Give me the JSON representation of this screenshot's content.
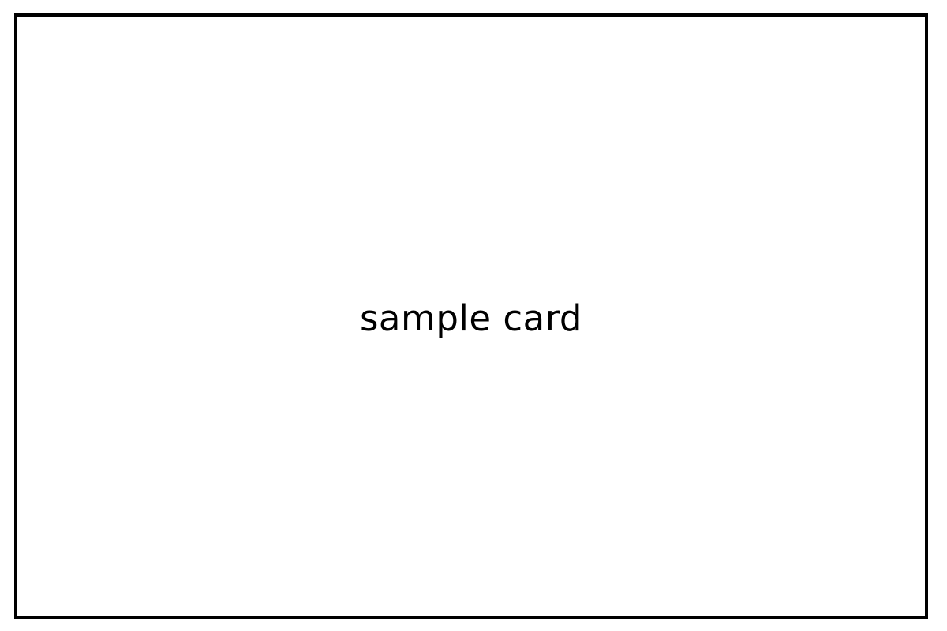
{
  "card": {
    "label": "sample card"
  },
  "colors": {
    "background": "#ffffff",
    "border": "#000000",
    "text": "#000000"
  }
}
